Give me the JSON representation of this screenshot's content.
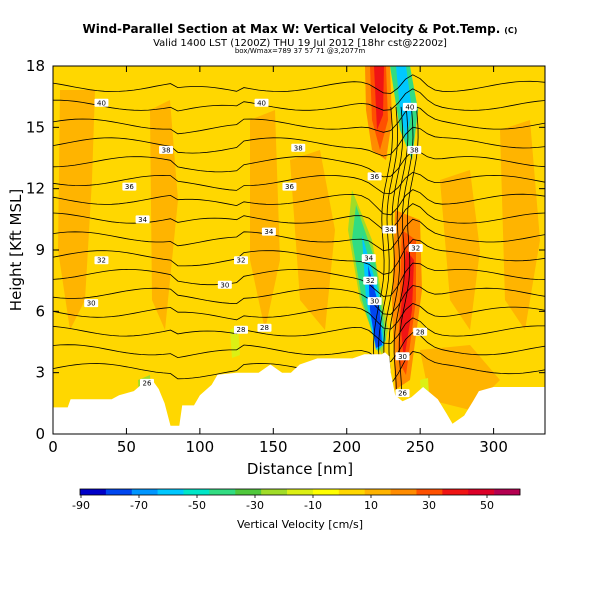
{
  "title": "Wind-Parallel Section at Max W: Vertical Velocity & Pot.Temp.",
  "title_mark": "(C)",
  "subtitle": "Valid 1400 LST (1200Z) THU 19 Jul 2012 [18hr cst@2200z]",
  "subtitle2": "box/Wmax=789 37 57 71 @3,2077m",
  "colors": {
    "terrain": "#ffffff",
    "contour": "#000000",
    "background_fill": "#ffd700"
  },
  "chart_data": {
    "type": "heatmap",
    "xlabel": "Distance [nm]",
    "ylabel": "Height [Kft MSL]",
    "xlim": [
      0,
      335
    ],
    "ylim": [
      0,
      18
    ],
    "xticks": [
      0,
      50,
      100,
      150,
      200,
      250,
      300
    ],
    "yticks": [
      0,
      3,
      6,
      9,
      12,
      15,
      18
    ],
    "colorbar": {
      "label": "Vertical Velocity [cm/s]",
      "tick_labels": [
        "-90",
        "-70",
        "-50",
        "-30",
        "-10",
        "10",
        "30",
        "50"
      ],
      "colors": [
        "#0000c8",
        "#0046f0",
        "#0096ff",
        "#00c8ff",
        "#00e6c8",
        "#32dc82",
        "#50c83c",
        "#a0dc28",
        "#dcf014",
        "#ffff00",
        "#ffd700",
        "#ffb400",
        "#ff8c00",
        "#ff5000",
        "#f01414",
        "#dc0028",
        "#b40050"
      ]
    },
    "theta_contour_labels": [
      {
        "x": 33,
        "z": 16.2,
        "label": "40"
      },
      {
        "x": 142,
        "z": 16.2,
        "label": "40"
      },
      {
        "x": 243,
        "z": 16.0,
        "label": "40"
      },
      {
        "x": 77,
        "z": 13.9,
        "label": "38"
      },
      {
        "x": 167,
        "z": 14.0,
        "label": "38"
      },
      {
        "x": 246,
        "z": 13.9,
        "label": "38"
      },
      {
        "x": 52,
        "z": 12.1,
        "label": "36"
      },
      {
        "x": 161,
        "z": 12.1,
        "label": "36"
      },
      {
        "x": 219,
        "z": 12.6,
        "label": "36"
      },
      {
        "x": 61,
        "z": 10.5,
        "label": "34"
      },
      {
        "x": 147,
        "z": 9.9,
        "label": "34"
      },
      {
        "x": 229,
        "z": 10.0,
        "label": "34"
      },
      {
        "x": 33,
        "z": 8.5,
        "label": "32"
      },
      {
        "x": 128,
        "z": 8.5,
        "label": "32"
      },
      {
        "x": 247,
        "z": 9.1,
        "label": "32"
      },
      {
        "x": 26,
        "z": 6.4,
        "label": "30"
      },
      {
        "x": 117,
        "z": 7.3,
        "label": "30"
      },
      {
        "x": 215,
        "z": 8.6,
        "label": "34"
      },
      {
        "x": 216,
        "z": 7.5,
        "label": "32"
      },
      {
        "x": 219,
        "z": 6.5,
        "label": "30"
      },
      {
        "x": 128,
        "z": 5.1,
        "label": "28"
      },
      {
        "x": 144,
        "z": 5.2,
        "label": "28"
      },
      {
        "x": 250,
        "z": 5.0,
        "label": "28"
      },
      {
        "x": 64,
        "z": 2.5,
        "label": "26"
      },
      {
        "x": 238,
        "z": 3.8,
        "label": "30"
      },
      {
        "x": 238,
        "z": 2.0,
        "label": "26"
      }
    ]
  }
}
